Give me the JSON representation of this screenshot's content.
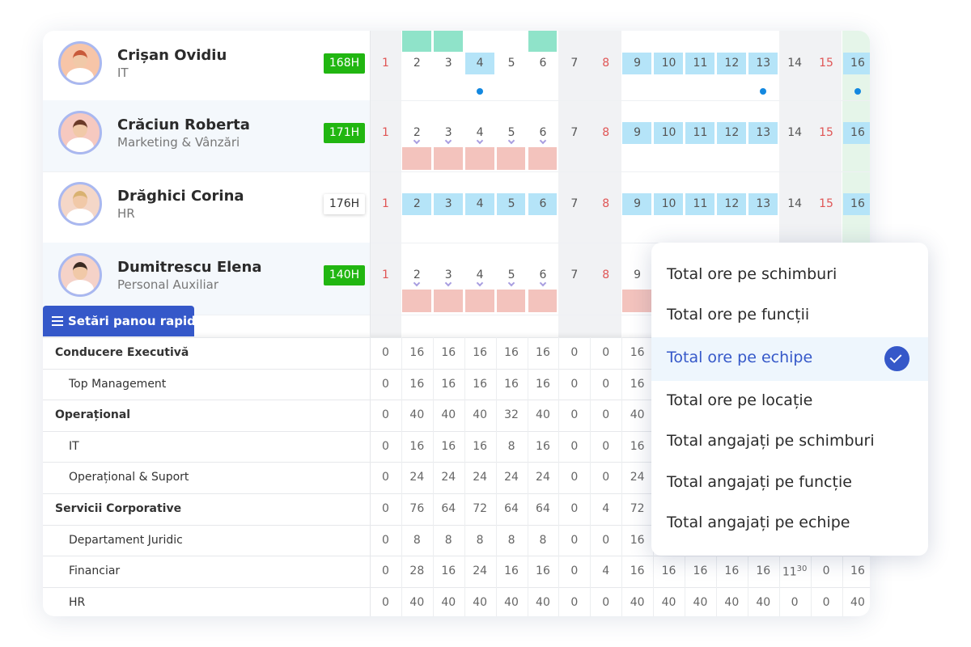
{
  "days": [
    1,
    2,
    3,
    4,
    5,
    6,
    7,
    8,
    9,
    10,
    11,
    12,
    13,
    14,
    15,
    16
  ],
  "employees": [
    {
      "name": "Crișan Ovidiu",
      "department": "IT",
      "hours": "168H"
    },
    {
      "name": "Crăciun Roberta",
      "department": "Marketing & Vânzări",
      "hours": "171H"
    },
    {
      "name": "Drăghici Corina",
      "department": "HR",
      "hours": "176H"
    },
    {
      "name": "Dumitrescu Elena",
      "department": "Personal Auxiliar",
      "hours": "140H"
    }
  ],
  "quick_settings_button": "Setări panou rapid",
  "table": {
    "rows": [
      {
        "label": "Conducere Executivă",
        "values": [
          0,
          16,
          16,
          16,
          16,
          16,
          0,
          0,
          16
        ]
      },
      {
        "label": "Top Management",
        "values": [
          0,
          16,
          16,
          16,
          16,
          16,
          0,
          0,
          16
        ]
      },
      {
        "label": "Operațional",
        "values": [
          0,
          40,
          40,
          40,
          32,
          40,
          0,
          0,
          40
        ]
      },
      {
        "label": "IT",
        "values": [
          0,
          16,
          16,
          16,
          8,
          16,
          0,
          0,
          16
        ]
      },
      {
        "label": "Operațional & Suport",
        "values": [
          0,
          24,
          24,
          24,
          24,
          24,
          0,
          0,
          24
        ]
      },
      {
        "label": "Servicii Corporative",
        "values": [
          0,
          76,
          64,
          72,
          64,
          64,
          0,
          4,
          72
        ]
      },
      {
        "label": "Departament Juridic",
        "values": [
          0,
          8,
          8,
          8,
          8,
          8,
          0,
          0,
          16
        ]
      },
      {
        "label": "Financiar",
        "values": [
          0,
          28,
          16,
          24,
          16,
          16,
          0,
          4,
          16,
          16,
          16,
          16,
          16,
          11,
          0,
          16
        ],
        "superscripts": {
          "13": "30"
        }
      },
      {
        "label": "HR",
        "values": [
          0,
          40,
          40,
          40,
          40,
          40,
          0,
          0,
          40,
          40,
          40,
          40,
          40,
          0,
          0,
          40
        ]
      }
    ]
  },
  "menu": {
    "items": [
      "Total ore pe schimburi",
      "Total ore pe funcții",
      "Total ore pe echipe",
      "Total ore pe locație",
      "Total angajați pe schimburi",
      "Total angajați pe funcție",
      "Total angajați pe echipe"
    ],
    "selected": 2
  }
}
